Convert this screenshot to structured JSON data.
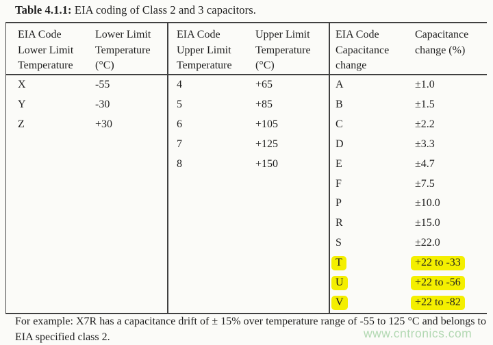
{
  "caption": {
    "label": "Table 4.1.1:",
    "text": " EIA coding of Class 2 and 3 capacitors."
  },
  "table": {
    "groups": [
      {
        "col1_header": "EIA Code Lower Limit Temperature",
        "col2_header": "Lower Limit Temperature (°C)",
        "rows": [
          {
            "code": "X",
            "value": "-55"
          },
          {
            "code": "Y",
            "value": "-30"
          },
          {
            "code": "Z",
            "value": "+30"
          }
        ]
      },
      {
        "col1_header": "EIA Code Upper Limit Temperature",
        "col2_header": "Upper Limit Temperature (°C)",
        "rows": [
          {
            "code": "4",
            "value": "+65"
          },
          {
            "code": "5",
            "value": "+85"
          },
          {
            "code": "6",
            "value": "+105"
          },
          {
            "code": "7",
            "value": "+125"
          },
          {
            "code": "8",
            "value": "+150"
          }
        ]
      },
      {
        "col1_header": "EIA Code Capacitance change",
        "col2_header": "Capacitance change (%)",
        "rows": [
          {
            "code": "A",
            "value": "±1.0"
          },
          {
            "code": "B",
            "value": "±1.5"
          },
          {
            "code": "C",
            "value": "±2.2"
          },
          {
            "code": "D",
            "value": "±3.3"
          },
          {
            "code": "E",
            "value": "±4.7"
          },
          {
            "code": "F",
            "value": "±7.5"
          },
          {
            "code": "P",
            "value": "±10.0"
          },
          {
            "code": "R",
            "value": "±15.0"
          },
          {
            "code": "S",
            "value": "±22.0"
          },
          {
            "code": "T",
            "value": "+22 to -33",
            "highlighted": true
          },
          {
            "code": "U",
            "value": "+22 to -56",
            "highlighted": true
          },
          {
            "code": "V",
            "value": "+22 to -82",
            "highlighted": true
          }
        ]
      }
    ]
  },
  "footnote": "For example: X7R has a capacitance drift of ± 15% over temperature range of -55 to 125 °C and belongs to EIA specified class 2.",
  "watermark": "www.cntronics.com",
  "colors": {
    "background": "#fbfbf8",
    "text": "#1e1e1e",
    "border": "#404040",
    "highlight": "#f4ef00",
    "watermark": "#b2d8b2"
  }
}
